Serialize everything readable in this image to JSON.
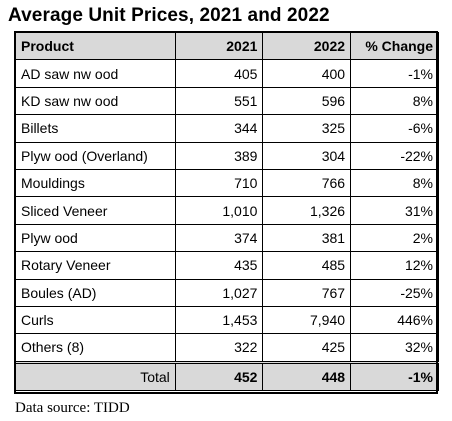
{
  "title": "Average Unit Prices, 2021 and 2022",
  "headers": {
    "product": "Product",
    "y2021": "2021",
    "y2022": "2022",
    "change": "% Change"
  },
  "rows": [
    {
      "product": "AD saw nw ood",
      "y2021": "405",
      "y2022": "400",
      "change": "-1%"
    },
    {
      "product": "KD saw nw ood",
      "y2021": "551",
      "y2022": "596",
      "change": "8%"
    },
    {
      "product": "Billets",
      "y2021": "344",
      "y2022": "325",
      "change": "-6%"
    },
    {
      "product": "Plyw ood (Overland)",
      "y2021": "389",
      "y2022": "304",
      "change": "-22%"
    },
    {
      "product": "Mouldings",
      "y2021": "710",
      "y2022": "766",
      "change": "8%"
    },
    {
      "product": "Sliced Veneer",
      "y2021": "1,010",
      "y2022": "1,326",
      "change": "31%"
    },
    {
      "product": "Plyw ood",
      "y2021": "374",
      "y2022": "381",
      "change": "2%"
    },
    {
      "product": "Rotary Veneer",
      "y2021": "435",
      "y2022": "485",
      "change": "12%"
    },
    {
      "product": "Boules (AD)",
      "y2021": "1,027",
      "y2022": "767",
      "change": "-25%"
    },
    {
      "product": "Curls",
      "y2021": "1,453",
      "y2022": "7,940",
      "change": "446%"
    },
    {
      "product": "Others (8)",
      "y2021": "322",
      "y2022": "425",
      "change": "32%"
    }
  ],
  "total": {
    "label": "Total",
    "y2021": "452",
    "y2022": "448",
    "change": "-1%"
  },
  "source": "Data source: TIDD",
  "colors": {
    "header_bg": "#d9d9d9",
    "total_bg": "#d9d9d9"
  }
}
